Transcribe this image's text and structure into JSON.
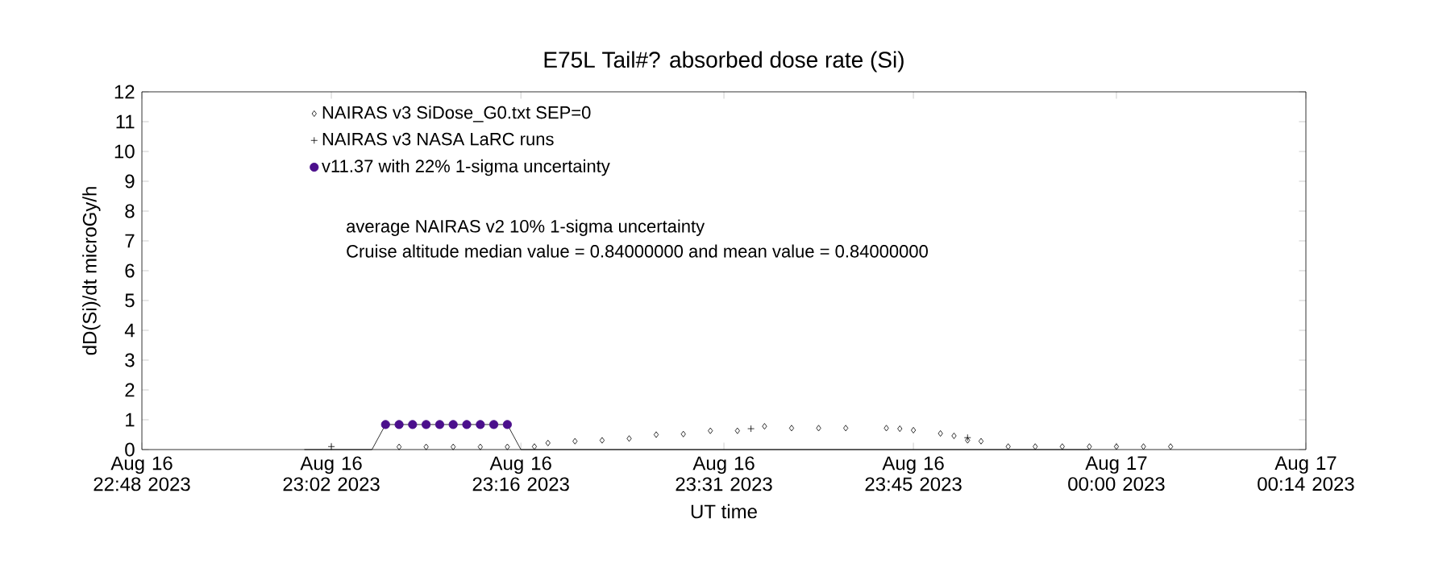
{
  "chart_data": {
    "type": "line",
    "title": "E75L Tail#? absorbed dose rate (Si)",
    "xlabel": "UT time",
    "ylabel": "dD(Si)/dt microGy/h",
    "xlim": [
      "2023-08-16T22:48",
      "2023-08-17T00:14"
    ],
    "xticks": [
      {
        "value": "2023-08-16T22:48",
        "label": "Aug 16 22:48 2023"
      },
      {
        "value": "2023-08-16T23:02",
        "label": "Aug 16 23:02 2023"
      },
      {
        "value": "2023-08-16T23:16",
        "label": "Aug 16 23:16 2023"
      },
      {
        "value": "2023-08-16T23:31",
        "label": "Aug 16 23:31 2023"
      },
      {
        "value": "2023-08-16T23:45",
        "label": "Aug 16 23:45 2023"
      },
      {
        "value": "2023-08-17T00:00",
        "label": "Aug 17 00:00 2023"
      },
      {
        "value": "2023-08-17T00:14",
        "label": "Aug 17 00:14 2023"
      }
    ],
    "ylim": [
      0,
      12
    ],
    "yticks": [
      0,
      1,
      2,
      3,
      4,
      5,
      6,
      7,
      8,
      9,
      10,
      11,
      12
    ],
    "legend": "top left",
    "series": [
      {
        "color": "#000000",
        "marker": "none",
        "x": [
          "2023-08-16T23:00",
          "2023-08-16T23:05",
          "2023-08-16T23:06",
          "2023-08-16T23:15",
          "2023-08-16T23:16",
          "2023-08-16T23:58"
        ],
        "values": [
          0,
          0,
          0.84,
          0.84,
          0,
          0
        ]
      },
      {
        "name": "NAIRAS v3 SiDose_G0.txt SEP=0",
        "type": "scatter",
        "marker": "diamond",
        "color": "#000000",
        "x": [
          "2023-08-16T23:07",
          "2023-08-16T23:09",
          "2023-08-16T23:11",
          "2023-08-16T23:13",
          "2023-08-16T23:15",
          "2023-08-16T23:17",
          "2023-08-16T23:18",
          "2023-08-16T23:20",
          "2023-08-16T23:22",
          "2023-08-16T23:24",
          "2023-08-16T23:26",
          "2023-08-16T23:28",
          "2023-08-16T23:30",
          "2023-08-16T23:32",
          "2023-08-16T23:34",
          "2023-08-16T23:36",
          "2023-08-16T23:38",
          "2023-08-16T23:40",
          "2023-08-16T23:43",
          "2023-08-16T23:44",
          "2023-08-16T23:45",
          "2023-08-16T23:47",
          "2023-08-16T23:48",
          "2023-08-16T23:49",
          "2023-08-16T23:50",
          "2023-08-16T23:52",
          "2023-08-16T23:54",
          "2023-08-16T23:56",
          "2023-08-16T23:58",
          "2023-08-17T00:00",
          "2023-08-17T00:02",
          "2023-08-17T00:04"
        ],
        "values": [
          0.09,
          0.09,
          0.09,
          0.09,
          0.09,
          0.1,
          0.22,
          0.28,
          0.31,
          0.37,
          0.5,
          0.52,
          0.63,
          0.63,
          0.78,
          0.72,
          0.72,
          0.72,
          0.72,
          0.7,
          0.65,
          0.54,
          0.46,
          0.31,
          0.28,
          0.1,
          0.1,
          0.1,
          0.1,
          0.1,
          0.1,
          0.1
        ]
      },
      {
        "name": "NAIRAS v3 NASA LaRC runs",
        "type": "scatter",
        "marker": "cross",
        "color": "#000000",
        "x": [
          "2023-08-16T23:02",
          "2023-08-16T23:33",
          "2023-08-16T23:49"
        ],
        "values": [
          0.1,
          0.7,
          0.4
        ]
      },
      {
        "name": "v11.37 with 22% 1-sigma uncertainty",
        "type": "scatter",
        "marker": "circle",
        "color": "#4b0f8c",
        "x": [
          "2023-08-16T23:06",
          "2023-08-16T23:07",
          "2023-08-16T23:08",
          "2023-08-16T23:09",
          "2023-08-16T23:10",
          "2023-08-16T23:11",
          "2023-08-16T23:12",
          "2023-08-16T23:13",
          "2023-08-16T23:14",
          "2023-08-16T23:15"
        ],
        "values": [
          0.84,
          0.84,
          0.84,
          0.84,
          0.84,
          0.84,
          0.84,
          0.84,
          0.84,
          0.84
        ]
      }
    ],
    "annotations": [
      "average NAIRAS v2 10% 1-sigma uncertainty",
      "Cruise altitude median value = 0.84000000 and mean value = 0.84000000"
    ]
  }
}
